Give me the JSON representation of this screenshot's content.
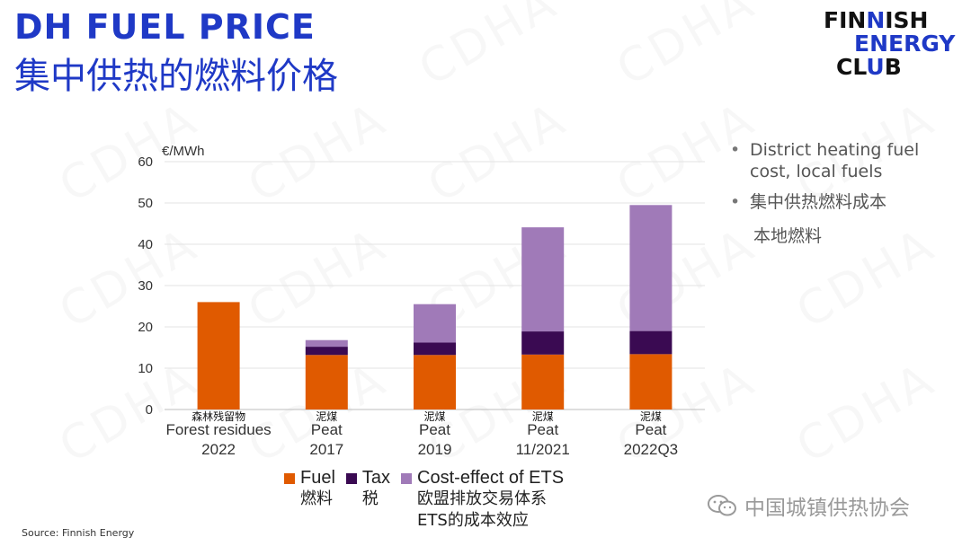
{
  "header": {
    "title_en": "DH FUEL PRICE",
    "title_cn": "集中供热的燃料价格"
  },
  "logo": {
    "line1_a": "FIN",
    "line1_b": "N",
    "line1_c": "ISH",
    "line2": "ENERGY",
    "line3_a": "CL",
    "line3_b": "U",
    "line3_c": "B",
    "colors": {
      "dark": "#111111",
      "blue": "#1f39c6"
    }
  },
  "watermark": "CDHA",
  "bullets": [
    {
      "text": "District heating fuel cost, local fuels"
    },
    {
      "text": "集中供热燃料成本",
      "sub": "本地燃料"
    }
  ],
  "source": "Source: Finnish Energy",
  "wechat": {
    "text": "中国城镇供热协会",
    "icon": "wechat-icon"
  },
  "chart_data": {
    "type": "bar",
    "stacked": true,
    "ylabel": "€/MWh",
    "ylim": [
      0,
      60
    ],
    "yticks": [
      0,
      10,
      20,
      30,
      40,
      50,
      60
    ],
    "grid": true,
    "legend_position": "bottom",
    "categories": [
      {
        "cn": "森林残留物",
        "en": "Forest residues",
        "period": "2022"
      },
      {
        "cn": "泥煤",
        "en": "Peat",
        "period": "2017"
      },
      {
        "cn": "泥煤",
        "en": "Peat",
        "period": "2019"
      },
      {
        "cn": "泥煤",
        "en": "Peat",
        "period": "11/2021"
      },
      {
        "cn": "泥煤",
        "en": "Peat",
        "period": "2022Q3"
      }
    ],
    "series": [
      {
        "name": "Fuel",
        "name_cn": "燃料",
        "color": "#e05a00",
        "values": [
          26,
          13.2,
          13.2,
          13.3,
          13.4
        ]
      },
      {
        "name": "Tax",
        "name_cn": "税",
        "color": "#3a0a52",
        "values": [
          0,
          2.0,
          3.0,
          5.6,
          5.6
        ]
      },
      {
        "name": "Cost-effect of ETS",
        "name_cn": "欧盟排放交易体系 ETS的成本效应",
        "color": "#a07ab8",
        "values": [
          0,
          1.6,
          9.3,
          25.2,
          30.5
        ]
      }
    ]
  }
}
